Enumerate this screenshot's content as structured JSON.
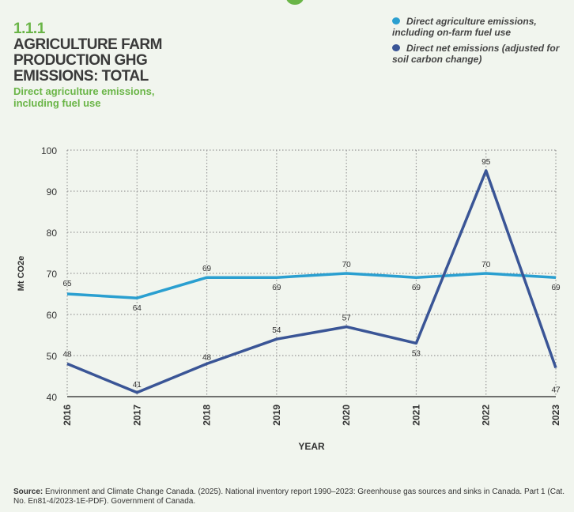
{
  "header": {
    "section_number": "1.1.1",
    "title_lines": [
      "AGRICULTURE FARM",
      "PRODUCTION GHG",
      "EMISSIONS: TOTAL"
    ],
    "subtitle": "Direct agriculture emissions, including fuel use"
  },
  "colors": {
    "accent_green": "#6ab547",
    "series_light": "#2a9fd0",
    "series_dark": "#3a5596",
    "background": "#f1f5ee"
  },
  "chart_data": {
    "type": "line",
    "xlabel": "YEAR",
    "ylabel": "Mt CO2e",
    "x": [
      "2016",
      "2017",
      "2018",
      "2019",
      "2020",
      "2021",
      "2022",
      "2023"
    ],
    "ylim": [
      40,
      100
    ],
    "yticks": [
      40,
      50,
      60,
      70,
      80,
      90,
      100
    ],
    "grid": true,
    "legend_placement": "top-right",
    "series": [
      {
        "name": "Direct agriculture emissions, including on-farm fuel use",
        "color": "#2a9fd0",
        "values": [
          65,
          64,
          69,
          69,
          70,
          69,
          70,
          69
        ]
      },
      {
        "name": "Direct net emissions (adjusted for soil carbon change)",
        "color": "#3a5596",
        "values": [
          48,
          41,
          48,
          54,
          57,
          53,
          95,
          47
        ]
      }
    ]
  },
  "source": {
    "label": "Source:",
    "text": " Environment and Climate Change Canada. (2025). National inventory report 1990–2023: Greenhouse gas sources and sinks in Canada. Part 1 (Cat. No. En81-4/2023-1E-PDF). Government of Canada."
  }
}
